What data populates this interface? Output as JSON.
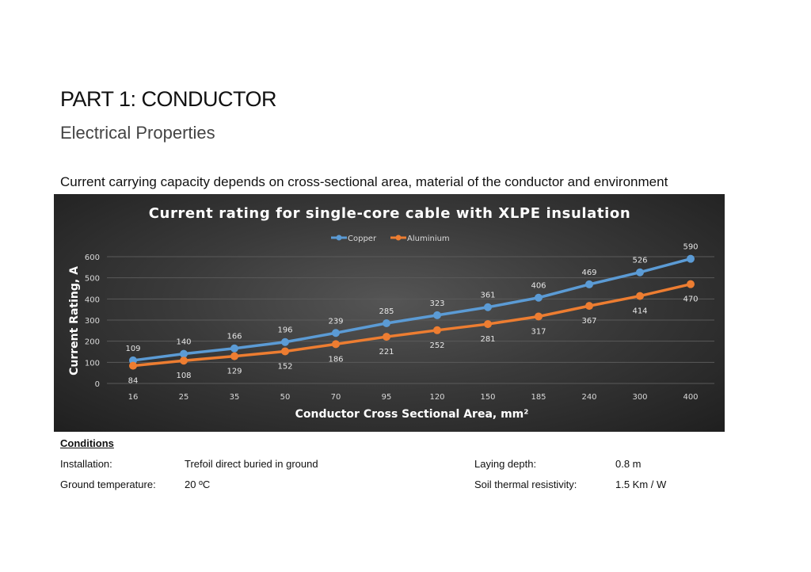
{
  "heading": "PART 1: CONDUCTOR",
  "subheading": "Electrical Properties",
  "intro": "Current carrying capacity depends on cross-sectional area, material of the conductor and environment",
  "chart_data": {
    "type": "line",
    "title": "Current rating for single-core cable with XLPE insulation",
    "xlabel": "Conductor Cross Sectional Area, mm²",
    "ylabel": "Current Rating, A",
    "categories": [
      "16",
      "25",
      "35",
      "50",
      "70",
      "95",
      "120",
      "150",
      "185",
      "240",
      "300",
      "400"
    ],
    "ylim": [
      0,
      600
    ],
    "yticks": [
      "0",
      "100",
      "200",
      "300",
      "400",
      "500",
      "600"
    ],
    "grid": true,
    "legend": "top",
    "series": [
      {
        "name": "Copper",
        "color": "#5b9bd5",
        "values": [
          109,
          140,
          166,
          196,
          239,
          285,
          323,
          361,
          406,
          469,
          526,
          590
        ]
      },
      {
        "name": "Aluminium",
        "color": "#ed7d31",
        "values": [
          84,
          108,
          129,
          152,
          186,
          221,
          252,
          281,
          317,
          367,
          414,
          470
        ]
      }
    ]
  },
  "conditions": {
    "title": "Conditions",
    "installation_label": "Installation:",
    "installation_value": "Trefoil direct buried in ground",
    "ground_temp_label": "Ground temperature:",
    "ground_temp_value": "20 ºC",
    "laying_depth_label": "Laying depth:",
    "laying_depth_value": "0.8 m",
    "soil_label": "Soil thermal resistivity:",
    "soil_value": "1.5 Km / W"
  }
}
